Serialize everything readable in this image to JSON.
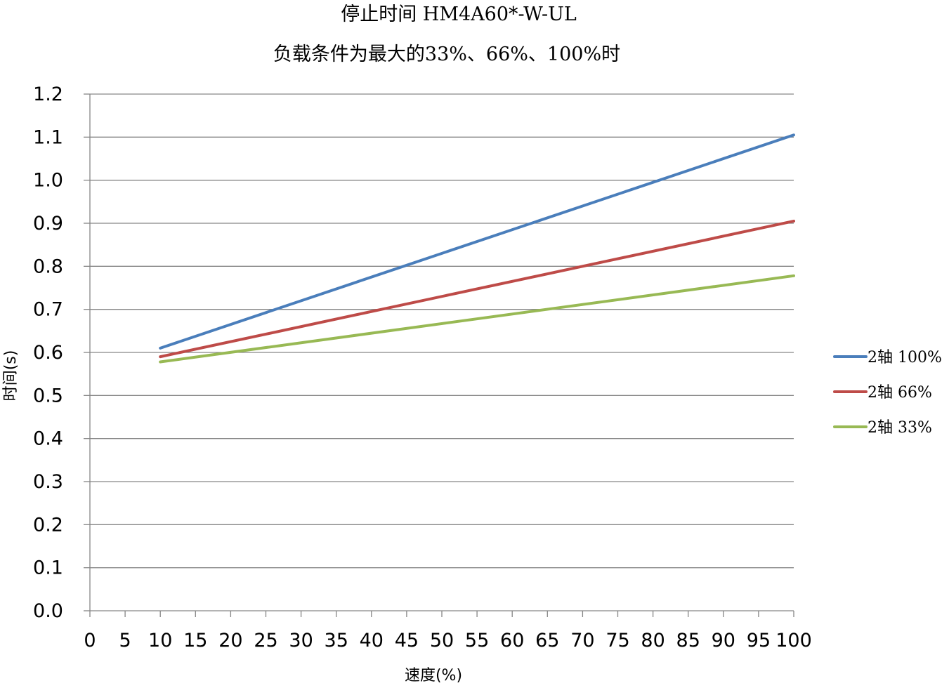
{
  "chart_data": {
    "type": "line",
    "title": "停止时间 HM4A60*-W-UL",
    "subtitle": "负载条件为最大的33%、66%、100%时",
    "xlabel": "速度(%)",
    "ylabel": "时间(s)",
    "xlim": [
      0,
      100
    ],
    "ylim": [
      0,
      1.2
    ],
    "x_ticks": [
      0,
      5,
      10,
      15,
      20,
      25,
      30,
      35,
      40,
      45,
      50,
      55,
      60,
      65,
      70,
      75,
      80,
      85,
      90,
      95,
      100
    ],
    "y_ticks": [
      0.0,
      0.1,
      0.2,
      0.3,
      0.4,
      0.5,
      0.6,
      0.7,
      0.8,
      0.9,
      1.0,
      1.1,
      1.2
    ],
    "grid": "horizontal",
    "legend_position": "right",
    "x": [
      10,
      100
    ],
    "series": [
      {
        "name": "2轴 100%",
        "color": "#4a7ebb",
        "values": [
          0.61,
          1.105
        ]
      },
      {
        "name": "2轴 66%",
        "color": "#be4b48",
        "values": [
          0.59,
          0.905
        ]
      },
      {
        "name": "2轴 33%",
        "color": "#98b954",
        "values": [
          0.578,
          0.778
        ]
      }
    ]
  }
}
